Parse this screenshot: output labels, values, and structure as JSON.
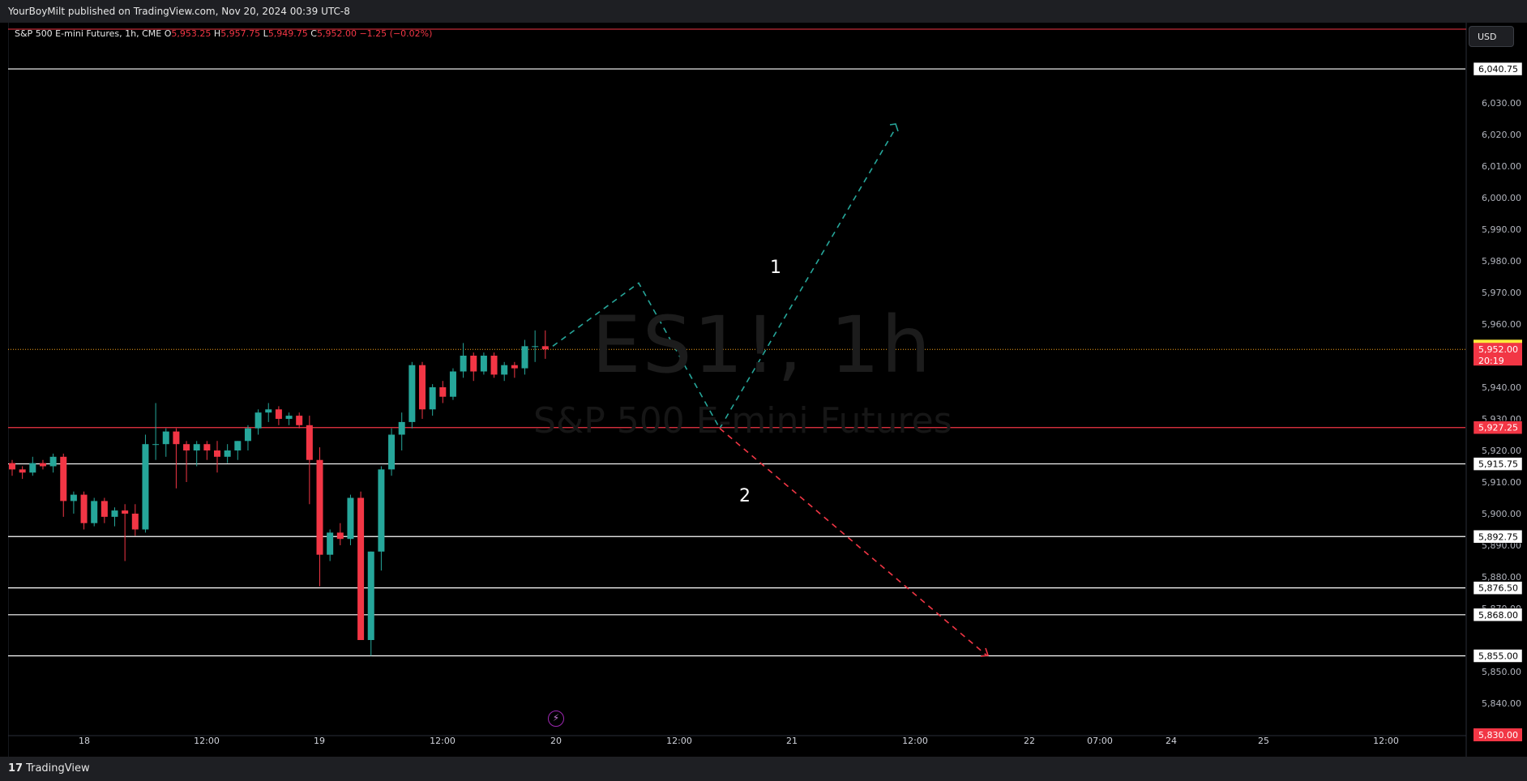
{
  "header": {
    "published": "YourBoyMilt published on TradingView.com, Nov 20, 2024 00:39 UTC-8"
  },
  "legend": {
    "symbol": "S&P 500 E-mini Futures, 1h, CME",
    "o_label": "O",
    "o": "5,953.25",
    "h_label": "H",
    "h": "5,957.75",
    "l_label": "L",
    "l": "5,949.75",
    "c_label": "C",
    "c": "5,952.00",
    "change": "−1.25 (−0.02%)"
  },
  "currency": "USD",
  "watermark": {
    "symbol": "ES1!, 1h",
    "name": "S&P 500 E-mini Futures"
  },
  "footer": {
    "brand": "TradingView"
  },
  "colors": {
    "up": "#26a69a",
    "down": "#f23645",
    "hline": "#ffffff",
    "redline": "#f23645",
    "price_yellow": "#ffeb3b",
    "alert_purple": "#9c27b0"
  },
  "icons": {
    "alert": "lightning-icon",
    "brand": "tradingview-logo-icon"
  },
  "chart_data": {
    "type": "candlestick",
    "ylim": [
      5825,
      6055
    ],
    "y_ticks": [
      "6,030.00",
      "6,020.00",
      "6,010.00",
      "6,000.00",
      "5,990.00",
      "5,980.00",
      "5,970.00",
      "5,960.00",
      "5,940.00",
      "5,930.00",
      "5,920.00",
      "5,910.00",
      "5,900.00",
      "5,890.00",
      "5,880.00",
      "5,870.00",
      "5,850.00",
      "5,840.00"
    ],
    "x_labels": [
      "18",
      "12:00",
      "19",
      "12:00",
      "20",
      "12:00",
      "21",
      "12:00",
      "22",
      "07:00",
      "24",
      "25",
      "12:00"
    ],
    "candles": [
      {
        "o": 5916,
        "h": 5917,
        "l": 5912,
        "c": 5914
      },
      {
        "o": 5914,
        "h": 5915,
        "l": 5911,
        "c": 5913
      },
      {
        "o": 5913,
        "h": 5918,
        "l": 5912,
        "c": 5916
      },
      {
        "o": 5916,
        "h": 5917,
        "l": 5914,
        "c": 5915
      },
      {
        "o": 5915,
        "h": 5919,
        "l": 5913,
        "c": 5918
      },
      {
        "o": 5918,
        "h": 5919,
        "l": 5899,
        "c": 5904
      },
      {
        "o": 5904,
        "h": 5907,
        "l": 5900,
        "c": 5906
      },
      {
        "o": 5906,
        "h": 5907,
        "l": 5895,
        "c": 5897
      },
      {
        "o": 5897,
        "h": 5905,
        "l": 5896,
        "c": 5904
      },
      {
        "o": 5904,
        "h": 5905,
        "l": 5897,
        "c": 5899
      },
      {
        "o": 5899,
        "h": 5902,
        "l": 5896,
        "c": 5901
      },
      {
        "o": 5901,
        "h": 5903,
        "l": 5885,
        "c": 5900
      },
      {
        "o": 5900,
        "h": 5903,
        "l": 5893,
        "c": 5895
      },
      {
        "o": 5895,
        "h": 5925,
        "l": 5894,
        "c": 5922
      },
      {
        "o": 5922,
        "h": 5935,
        "l": 5917,
        "c": 5922
      },
      {
        "o": 5922,
        "h": 5927,
        "l": 5918,
        "c": 5926
      },
      {
        "o": 5926,
        "h": 5927,
        "l": 5908,
        "c": 5922
      },
      {
        "o": 5922,
        "h": 5923,
        "l": 5910,
        "c": 5920
      },
      {
        "o": 5920,
        "h": 5923,
        "l": 5915,
        "c": 5922
      },
      {
        "o": 5922,
        "h": 5923,
        "l": 5917,
        "c": 5920
      },
      {
        "o": 5920,
        "h": 5923,
        "l": 5913,
        "c": 5918
      },
      {
        "o": 5918,
        "h": 5922,
        "l": 5916,
        "c": 5920
      },
      {
        "o": 5920,
        "h": 5923,
        "l": 5917,
        "c": 5923
      },
      {
        "o": 5923,
        "h": 5928,
        "l": 5920,
        "c": 5927
      },
      {
        "o": 5927,
        "h": 5933,
        "l": 5925,
        "c": 5932
      },
      {
        "o": 5932,
        "h": 5935,
        "l": 5929,
        "c": 5933
      },
      {
        "o": 5933,
        "h": 5934,
        "l": 5928,
        "c": 5930
      },
      {
        "o": 5930,
        "h": 5932,
        "l": 5928,
        "c": 5931
      },
      {
        "o": 5931,
        "h": 5932,
        "l": 5927,
        "c": 5928
      },
      {
        "o": 5928,
        "h": 5931,
        "l": 5903,
        "c": 5917
      },
      {
        "o": 5917,
        "h": 5921,
        "l": 5877,
        "c": 5887
      },
      {
        "o": 5887,
        "h": 5895,
        "l": 5885,
        "c": 5894
      },
      {
        "o": 5894,
        "h": 5897,
        "l": 5890,
        "c": 5892
      },
      {
        "o": 5892,
        "h": 5906,
        "l": 5890,
        "c": 5905
      },
      {
        "o": 5905,
        "h": 5907,
        "l": 5860,
        "c": 5860
      },
      {
        "o": 5860,
        "h": 5888,
        "l": 5855,
        "c": 5888
      },
      {
        "o": 5888,
        "h": 5915,
        "l": 5882,
        "c": 5914
      },
      {
        "o": 5914,
        "h": 5927,
        "l": 5912,
        "c": 5925
      },
      {
        "o": 5925,
        "h": 5932,
        "l": 5920,
        "c": 5929
      },
      {
        "o": 5929,
        "h": 5948,
        "l": 5927,
        "c": 5947
      },
      {
        "o": 5947,
        "h": 5948,
        "l": 5930,
        "c": 5933
      },
      {
        "o": 5933,
        "h": 5941,
        "l": 5931,
        "c": 5940
      },
      {
        "o": 5940,
        "h": 5942,
        "l": 5935,
        "c": 5937
      },
      {
        "o": 5937,
        "h": 5946,
        "l": 5936,
        "c": 5945
      },
      {
        "o": 5945,
        "h": 5954,
        "l": 5943,
        "c": 5950
      },
      {
        "o": 5950,
        "h": 5951,
        "l": 5942,
        "c": 5945
      },
      {
        "o": 5945,
        "h": 5951,
        "l": 5944,
        "c": 5950
      },
      {
        "o": 5950,
        "h": 5951,
        "l": 5943,
        "c": 5944
      },
      {
        "o": 5944,
        "h": 5948,
        "l": 5942,
        "c": 5947
      },
      {
        "o": 5947,
        "h": 5948,
        "l": 5943,
        "c": 5946
      },
      {
        "o": 5946,
        "h": 5955,
        "l": 5944,
        "c": 5953
      },
      {
        "o": 5953,
        "h": 5958,
        "l": 5948,
        "c": 5953
      },
      {
        "o": 5953,
        "h": 5958,
        "l": 5949,
        "c": 5952
      }
    ],
    "horizontal_levels": [
      {
        "value": 6040.75,
        "label": "6,040.75",
        "color": "#ffffff"
      },
      {
        "value": 5927.25,
        "label": "5,927.25",
        "color": "#f23645"
      },
      {
        "value": 5915.75,
        "label": "5,915.75",
        "color": "#ffffff"
      },
      {
        "value": 5892.75,
        "label": "5,892.75",
        "color": "#ffffff"
      },
      {
        "value": 5876.5,
        "label": "5,876.50",
        "color": "#ffffff"
      },
      {
        "value": 5868.0,
        "label": "5,868.00",
        "color": "#ffffff"
      },
      {
        "value": 5855.0,
        "label": "5,855.00",
        "color": "#ffffff"
      }
    ],
    "price_labels": [
      {
        "value": 5953.0,
        "label": "5,953.00",
        "bg": "#ffeb3b",
        "fg": "#000000"
      },
      {
        "value": 5952.0,
        "label": "5,952.00",
        "sub": "20:19",
        "bg": "#f23645",
        "fg": "#ffffff"
      },
      {
        "value": 5830.0,
        "label": "5,830.00",
        "bg": "#f23645",
        "fg": "#ffffff"
      }
    ],
    "projections": {
      "green": [
        [
          0,
          5953
        ],
        [
          1,
          5973
        ],
        [
          2,
          5927
        ],
        [
          3,
          6022
        ]
      ],
      "red": [
        [
          2,
          5927
        ],
        [
          4,
          5855
        ]
      ],
      "wave_labels": [
        "1",
        "2"
      ]
    }
  }
}
